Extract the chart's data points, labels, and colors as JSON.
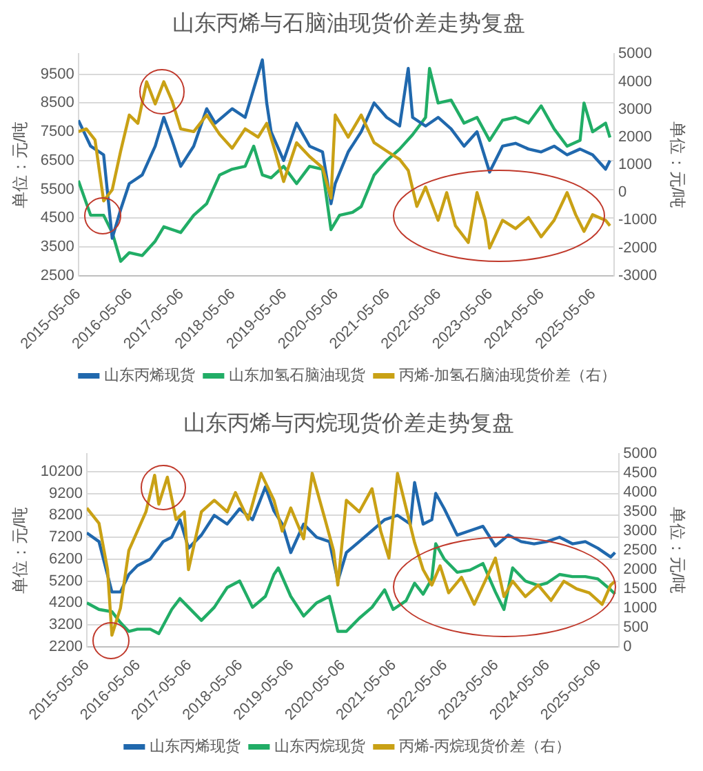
{
  "chart_data": [
    {
      "type": "line",
      "title": "山东丙烯与石脑油现货价差走势复盘",
      "ylabel": "单位：元/吨",
      "y2label": "单位：元/吨",
      "legend": "bottom",
      "grid": "y",
      "marker": "none",
      "line_style": "solid",
      "xlim": [
        "2015-05-06",
        "2025-09-30"
      ],
      "xticks": [
        "2015-05-06",
        "2016-05-06",
        "2017-05-06",
        "2018-05-06",
        "2019-05-06",
        "2020-05-06",
        "2021-05-06",
        "2022-05-06",
        "2023-05-06",
        "2024-05-06",
        "2025-05-06"
      ],
      "ylim": [
        2500,
        10200
      ],
      "yticks": [
        2500,
        3500,
        4500,
        5500,
        6500,
        7500,
        8500,
        9500
      ],
      "y2lim": [
        -3000,
        5000
      ],
      "y2ticks": [
        -3000,
        -2000,
        -1000,
        0,
        1000,
        2000,
        3000,
        4000,
        5000
      ],
      "series": [
        {
          "name": "山东丙烯现货",
          "color": "#2068ad",
          "x": [
            "2015-05-06",
            "2015-08",
            "2015-11",
            "2016-01",
            "2016-03",
            "2016-05",
            "2016-08",
            "2016-11",
            "2017-01",
            "2017-03",
            "2017-05",
            "2017-08",
            "2017-11",
            "2018-01",
            "2018-05",
            "2018-08",
            "2018-11",
            "2018-12",
            "2019-01",
            "2019-02",
            "2019-05",
            "2019-08",
            "2019-11",
            "2020-02",
            "2020-04",
            "2020-05",
            "2020-08",
            "2020-11",
            "2021-02",
            "2021-05",
            "2021-08",
            "2021-10",
            "2021-11",
            "2022-02",
            "2022-05",
            "2022-08",
            "2022-11",
            "2023-02",
            "2023-05",
            "2023-08",
            "2023-11",
            "2024-02",
            "2024-05",
            "2024-08",
            "2024-11",
            "2025-02",
            "2025-05",
            "2025-08",
            "2025-09"
          ],
          "values": [
            7900,
            7000,
            6700,
            3800,
            4800,
            5700,
            6000,
            7000,
            8000,
            7200,
            6300,
            7000,
            8300,
            7800,
            8300,
            8000,
            9500,
            10000,
            8500,
            7500,
            6500,
            7800,
            7000,
            6800,
            5000,
            5700,
            6800,
            7500,
            8500,
            8000,
            7700,
            9700,
            8000,
            7700,
            8000,
            7600,
            7000,
            7500,
            6100,
            7000,
            7100,
            6900,
            6800,
            7000,
            6700,
            6900,
            6700,
            6200,
            6500
          ]
        },
        {
          "name": "山东加氢石脑油现货",
          "color": "#21ad66",
          "x": [
            "2015-05-06",
            "2015-08",
            "2015-11",
            "2016-01",
            "2016-03",
            "2016-05",
            "2016-08",
            "2016-11",
            "2017-01",
            "2017-05",
            "2017-08",
            "2017-11",
            "2018-02",
            "2018-05",
            "2018-08",
            "2018-10",
            "2018-12",
            "2019-02",
            "2019-05",
            "2019-08",
            "2019-11",
            "2020-02",
            "2020-04",
            "2020-06",
            "2020-09",
            "2020-11",
            "2021-02",
            "2021-05",
            "2021-08",
            "2021-11",
            "2022-02",
            "2022-03",
            "2022-05",
            "2022-08",
            "2022-11",
            "2023-02",
            "2023-05",
            "2023-08",
            "2023-11",
            "2024-02",
            "2024-05",
            "2024-08",
            "2024-11",
            "2025-02",
            "2025-03",
            "2025-05",
            "2025-08",
            "2025-09"
          ],
          "values": [
            5800,
            4600,
            4600,
            4000,
            3000,
            3300,
            3200,
            3700,
            4200,
            4000,
            4600,
            5000,
            6000,
            6200,
            6300,
            7000,
            6000,
            5900,
            6300,
            5700,
            6300,
            6200,
            4100,
            4600,
            4700,
            4900,
            6000,
            6500,
            6900,
            7400,
            8000,
            9700,
            8500,
            8600,
            7800,
            8000,
            7200,
            7900,
            8000,
            7800,
            8400,
            7600,
            7000,
            7200,
            8500,
            7500,
            7800,
            7300
          ]
        },
        {
          "name": "丙烯-加氢石脑油现货价差（右）",
          "color": "#c9a115",
          "axis": "y2",
          "x": [
            "2015-05-06",
            "2015-07",
            "2015-09",
            "2015-11",
            "2016-01",
            "2016-03",
            "2016-05",
            "2016-07",
            "2016-09",
            "2016-11",
            "2017-01",
            "2017-03",
            "2017-05",
            "2017-08",
            "2017-11",
            "2018-02",
            "2018-05",
            "2018-08",
            "2018-11",
            "2019-01",
            "2019-03",
            "2019-05",
            "2019-08",
            "2019-11",
            "2020-02",
            "2020-04",
            "2020-05",
            "2020-08",
            "2020-11",
            "2021-02",
            "2021-05",
            "2021-08",
            "2021-10",
            "2021-12",
            "2022-02",
            "2022-05",
            "2022-07",
            "2022-09",
            "2022-12",
            "2023-02",
            "2023-04",
            "2023-05",
            "2023-08",
            "2023-11",
            "2024-02",
            "2024-05",
            "2024-08",
            "2024-11",
            "2025-01",
            "2025-03",
            "2025-05",
            "2025-08",
            "2025-09"
          ],
          "values": [
            2200,
            2300,
            1900,
            -300,
            100,
            1500,
            2800,
            2500,
            4000,
            3200,
            4000,
            3300,
            2300,
            2200,
            2800,
            2100,
            1600,
            2300,
            2000,
            2500,
            1500,
            400,
            1800,
            1300,
            900,
            -200,
            2800,
            2000,
            2800,
            1800,
            1500,
            1200,
            800,
            -500,
            200,
            -1000,
            0,
            -1200,
            -1800,
            0,
            -1000,
            -2000,
            -1000,
            -1300,
            -900,
            -1600,
            -1000,
            0,
            -800,
            -1400,
            -800,
            -1000,
            -1200
          ]
        }
      ]
    },
    {
      "type": "line",
      "title": "山东丙烯与丙烷现货价差走势复盘",
      "ylabel": "单位：元/吨",
      "y2label": "单位：元/吨",
      "legend": "bottom",
      "grid": "y",
      "marker": "none",
      "line_style": "solid",
      "xlim": [
        "2015-05-06",
        "2025-09-30"
      ],
      "xticks": [
        "2015-05-06",
        "2016-05-06",
        "2017-05-06",
        "2018-05-06",
        "2019-05-06",
        "2020-05-06",
        "2021-05-06",
        "2022-05-06",
        "2023-05-06",
        "2024-05-06",
        "2025-05-06"
      ],
      "ylim": [
        2200,
        11000
      ],
      "yticks": [
        2200,
        3200,
        4200,
        5200,
        6200,
        7200,
        8200,
        9200,
        10200
      ],
      "y2lim": [
        0,
        5000
      ],
      "y2ticks": [
        0,
        500,
        1000,
        1500,
        2000,
        2500,
        3000,
        3500,
        4000,
        4500,
        5000
      ],
      "series": [
        {
          "name": "山东丙烯现货",
          "color": "#2068ad",
          "x": [
            "2015-05-06",
            "2015-08",
            "2015-11",
            "2016-01",
            "2016-03",
            "2016-05",
            "2016-08",
            "2016-11",
            "2017-01",
            "2017-03",
            "2017-05",
            "2017-08",
            "2017-11",
            "2018-02",
            "2018-05",
            "2018-08",
            "2018-11",
            "2019-01",
            "2019-03",
            "2019-05",
            "2019-08",
            "2019-11",
            "2020-02",
            "2020-04",
            "2020-06",
            "2020-09",
            "2020-12",
            "2021-03",
            "2021-06",
            "2021-09",
            "2021-10",
            "2021-12",
            "2022-02",
            "2022-03",
            "2022-05",
            "2022-08",
            "2022-11",
            "2023-02",
            "2023-05",
            "2023-08",
            "2023-11",
            "2024-02",
            "2024-05",
            "2024-08",
            "2024-11",
            "2025-02",
            "2025-05",
            "2025-08",
            "2025-09"
          ],
          "values": [
            7400,
            7000,
            4700,
            4700,
            5500,
            5900,
            6200,
            7000,
            7200,
            8000,
            6700,
            7300,
            8200,
            7800,
            8500,
            8000,
            9500,
            8400,
            7800,
            6500,
            7800,
            7200,
            7000,
            5200,
            6500,
            7000,
            7500,
            8000,
            8200,
            7800,
            9700,
            7800,
            8000,
            9200,
            8500,
            7300,
            7500,
            7700,
            6800,
            7300,
            7000,
            6900,
            7000,
            7200,
            6900,
            7000,
            6700,
            6300,
            6500
          ]
        },
        {
          "name": "山东丙烷现货",
          "color": "#21ad66",
          "x": [
            "2015-05-06",
            "2015-08",
            "2015-11",
            "2016-01",
            "2016-03",
            "2016-05",
            "2016-08",
            "2016-10",
            "2017-01",
            "2017-03",
            "2017-05",
            "2017-08",
            "2017-11",
            "2018-02",
            "2018-05",
            "2018-08",
            "2018-11",
            "2019-01",
            "2019-02",
            "2019-05",
            "2019-08",
            "2019-11",
            "2020-02",
            "2020-04",
            "2020-06",
            "2020-09",
            "2020-12",
            "2021-03",
            "2021-05",
            "2021-08",
            "2021-10",
            "2021-12",
            "2022-02",
            "2022-03",
            "2022-05",
            "2022-08",
            "2022-11",
            "2023-02",
            "2023-05",
            "2023-07",
            "2023-09",
            "2023-12",
            "2024-03",
            "2024-05",
            "2024-08",
            "2024-11",
            "2025-02",
            "2025-05",
            "2025-08",
            "2025-09"
          ],
          "values": [
            4200,
            3900,
            3800,
            3300,
            2900,
            3000,
            3000,
            2800,
            3900,
            4400,
            4000,
            3400,
            4000,
            4900,
            5200,
            4000,
            4500,
            5500,
            5800,
            4500,
            3600,
            4200,
            4500,
            2900,
            2900,
            3500,
            4000,
            4800,
            3900,
            4300,
            5100,
            4600,
            5300,
            6900,
            6200,
            5600,
            5700,
            6000,
            4700,
            3900,
            5800,
            5200,
            5000,
            5100,
            5500,
            5400,
            5400,
            5300,
            4800,
            4600
          ]
        },
        {
          "name": "丙烯-丙烷现货价差（右）",
          "color": "#c9a115",
          "axis": "y2",
          "x": [
            "2015-05-06",
            "2015-08",
            "2015-10",
            "2015-11",
            "2016-01",
            "2016-03",
            "2016-05",
            "2016-07",
            "2016-09",
            "2016-10",
            "2016-12",
            "2017-02",
            "2017-04",
            "2017-05",
            "2017-08",
            "2017-11",
            "2018-02",
            "2018-04",
            "2018-07",
            "2018-10",
            "2019-01",
            "2019-03",
            "2019-05",
            "2019-08",
            "2019-10",
            "2020-01",
            "2020-03",
            "2020-04",
            "2020-06",
            "2020-09",
            "2020-12",
            "2021-02",
            "2021-04",
            "2021-06",
            "2021-08",
            "2021-10",
            "2021-12",
            "2022-02",
            "2022-04",
            "2022-06",
            "2022-09",
            "2022-12",
            "2023-03",
            "2023-05",
            "2023-07",
            "2023-09",
            "2023-12",
            "2024-03",
            "2024-06",
            "2024-09",
            "2024-12",
            "2025-03",
            "2025-06",
            "2025-08",
            "2025-09"
          ],
          "values": [
            3600,
            3200,
            2000,
            300,
            1000,
            2500,
            3000,
            3500,
            4450,
            3700,
            4400,
            3300,
            3500,
            2000,
            3500,
            3800,
            3500,
            4000,
            3300,
            4500,
            3800,
            3000,
            3600,
            2800,
            4500,
            3300,
            2500,
            1600,
            3800,
            3500,
            4100,
            3000,
            2300,
            4500,
            3600,
            2700,
            2000,
            1600,
            2100,
            1400,
            1800,
            1100,
            1800,
            2300,
            1300,
            1700,
            1300,
            1600,
            1200,
            1700,
            1500,
            1400,
            1100,
            1600,
            1700
          ]
        }
      ]
    }
  ]
}
